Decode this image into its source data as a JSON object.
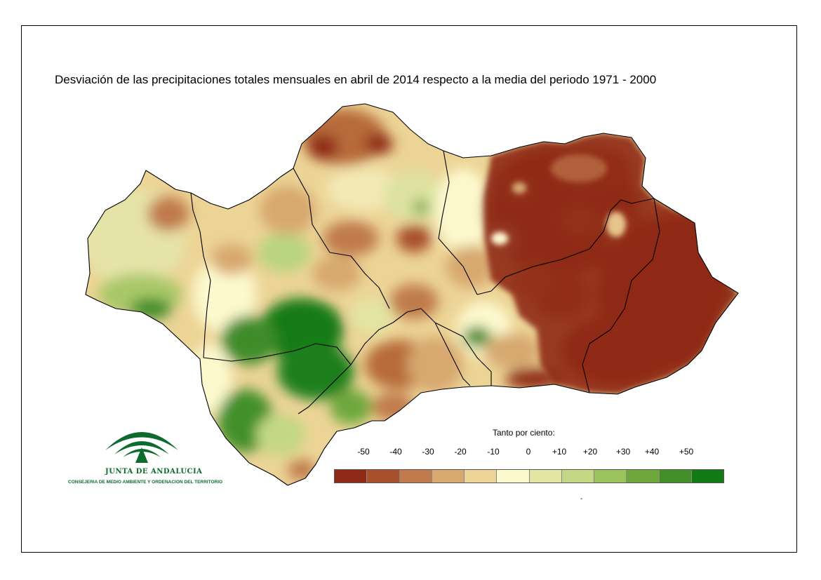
{
  "title": "Desviación de las precipitaciones totales mensuales en abril de 2014 respecto a la media del periodo 1971 - 2000",
  "legend": {
    "title": "Tanto por ciento:",
    "ticks": [
      "-50",
      "-40",
      "-30",
      "-20",
      "-10",
      "0",
      "+10",
      "+20",
      "+30",
      "+40",
      "+50"
    ],
    "colors": [
      "#8f2a16",
      "#a8502a",
      "#c07a4c",
      "#d7a870",
      "#ecd496",
      "#fdf9cf",
      "#e3e5a3",
      "#c3d884",
      "#9cc45e",
      "#6ea83c",
      "#43902a",
      "#137a14"
    ],
    "footnote": "-"
  },
  "logo": {
    "name": "JUNTA DE ANDALUCIA",
    "subtitle": "CONSEJERIA DE MEDIO AMBIENTE Y ORDENACION DEL TERRITORIO"
  }
}
